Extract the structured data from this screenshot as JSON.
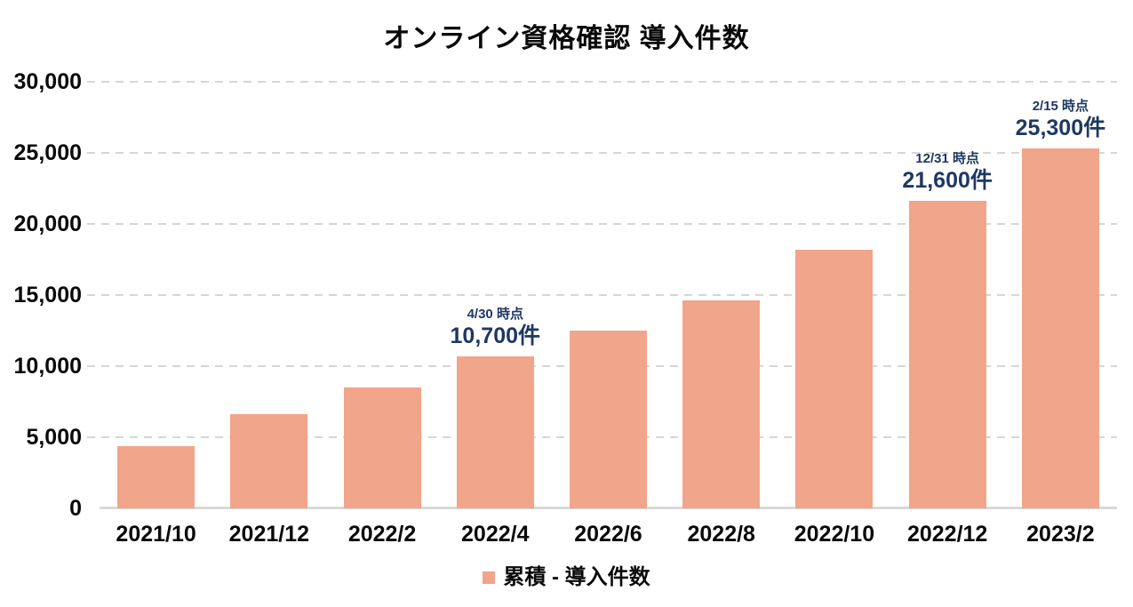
{
  "title": "オンライン資格確認 導入件数",
  "chart_data": {
    "type": "bar",
    "title": "オンライン資格確認 導入件数",
    "categories": [
      "2021/10",
      "2021/12",
      "2022/2",
      "2022/4",
      "2022/6",
      "2022/8",
      "2022/10",
      "2022/12",
      "2023/2"
    ],
    "series": [
      {
        "name": "累積 - 導入件数",
        "values": [
          4400,
          6600,
          8500,
          10700,
          12500,
          14600,
          18200,
          21600,
          25300
        ]
      }
    ],
    "xlabel": "",
    "ylabel": "",
    "ylim": [
      0,
      30000
    ],
    "ytick_step": 5000,
    "ytick_labels": [
      "0",
      "5,000",
      "10,000",
      "15,000",
      "20,000",
      "25,000",
      "30,000"
    ],
    "grid": "horizontal-dashed",
    "legend_position": "bottom-center",
    "annotations": [
      {
        "index": 3,
        "date_label": "4/30 時点",
        "value_label": "10,700件"
      },
      {
        "index": 7,
        "date_label": "12/31 時点",
        "value_label": "21,600件"
      },
      {
        "index": 8,
        "date_label": "2/15 時点",
        "value_label": "25,300件"
      }
    ],
    "colors": {
      "bar": "#f1a58a",
      "annotation_text": "#1f3864",
      "gridline": "#d6d6d6",
      "axis_text": "#0a0a0a"
    }
  },
  "legend": {
    "label": "累積 - 導入件数",
    "swatch_color": "#f1a58a"
  }
}
